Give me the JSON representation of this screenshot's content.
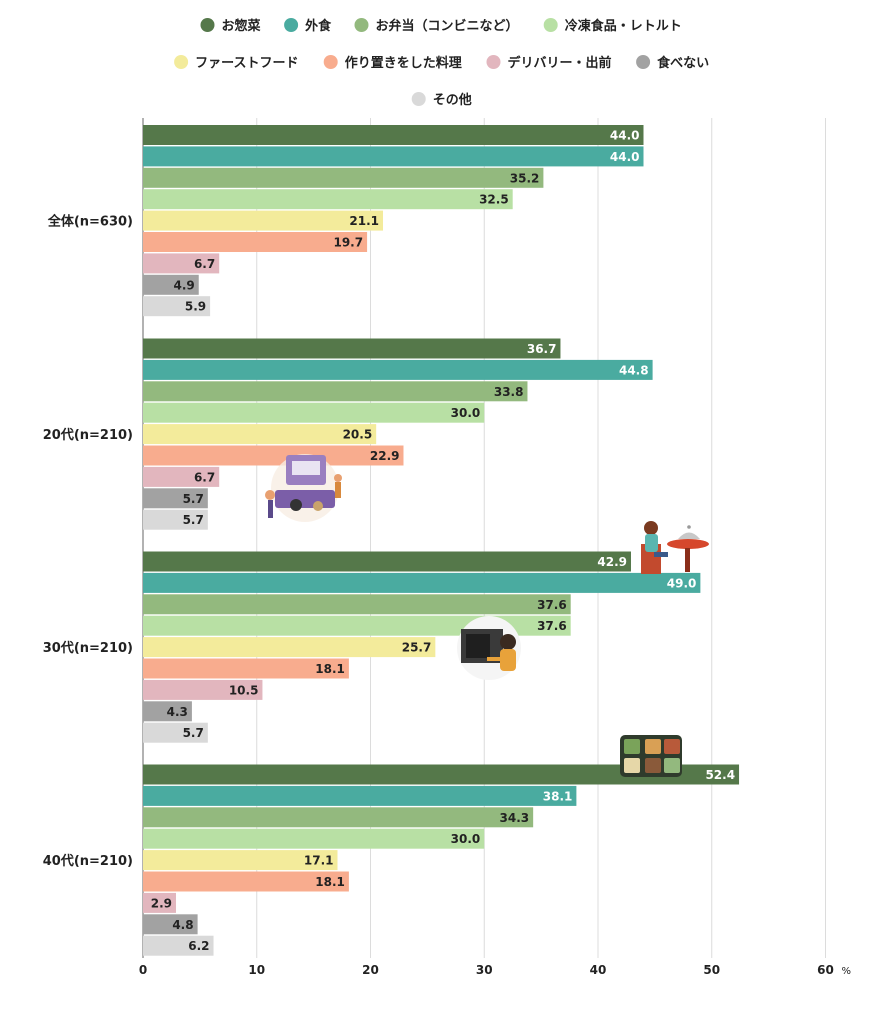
{
  "chart_data": {
    "type": "bar",
    "orientation": "horizontal",
    "title": "",
    "xlabel": "",
    "ylabel": "",
    "unit": "%",
    "xlim": [
      0,
      60
    ],
    "xticks": [
      "0",
      "10",
      "20",
      "30",
      "40",
      "50",
      "60"
    ],
    "grid": true,
    "legend_position": "top",
    "categories": [
      "全体(n=630)",
      "20代(n=210)",
      "30代(n=210)",
      "40代(n=210)"
    ],
    "series": [
      {
        "name": "お惣菜",
        "color": "#55784a",
        "label_color": "#ffffff",
        "values": [
          44.0,
          36.7,
          42.9,
          52.4
        ]
      },
      {
        "name": "外食",
        "color": "#4aaba0",
        "label_color": "#ffffff",
        "values": [
          44.0,
          44.8,
          49.0,
          38.1
        ]
      },
      {
        "name": "お弁当（コンビニなど）",
        "color": "#93b97e",
        "label_color": "#222222",
        "values": [
          35.2,
          33.8,
          37.6,
          34.3
        ]
      },
      {
        "name": "冷凍食品・レトルト",
        "color": "#b8e0a4",
        "label_color": "#222222",
        "values": [
          32.5,
          30.0,
          37.6,
          30.0
        ]
      },
      {
        "name": "ファーストフード",
        "color": "#f3eb9b",
        "label_color": "#222222",
        "values": [
          21.1,
          20.5,
          25.7,
          17.1
        ]
      },
      {
        "name": "作り置きをした料理",
        "color": "#f8ac8e",
        "label_color": "#222222",
        "values": [
          19.7,
          22.9,
          18.1,
          18.1
        ]
      },
      {
        "name": "デリバリー・出前",
        "color": "#e2b6be",
        "label_color": "#222222",
        "values": [
          6.7,
          6.7,
          10.5,
          2.9
        ]
      },
      {
        "name": "食べない",
        "color": "#a2a2a2",
        "label_color": "#222222",
        "values": [
          4.9,
          5.7,
          4.3,
          4.8
        ]
      },
      {
        "name": "その他",
        "color": "#d9d9d9",
        "label_color": "#222222",
        "values": [
          5.9,
          5.7,
          5.7,
          6.2
        ]
      }
    ]
  }
}
